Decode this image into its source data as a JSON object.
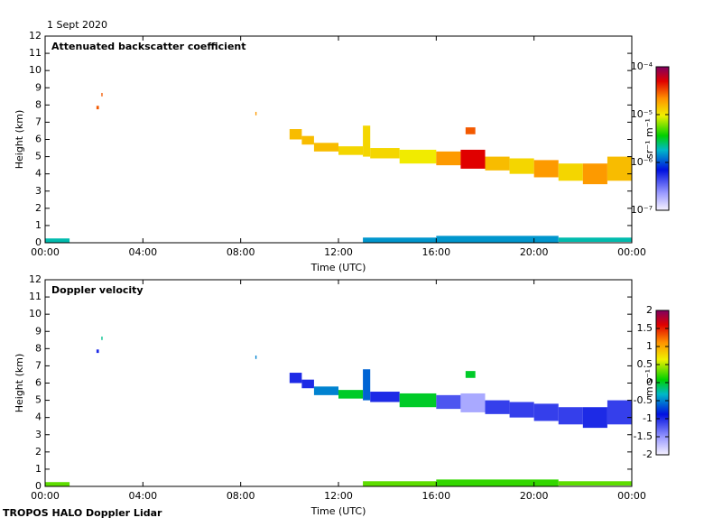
{
  "header": {
    "date": "1 Sept 2020"
  },
  "footer": "TROPOS HALO Doppler Lidar",
  "chart_data": [
    {
      "type": "heatmap",
      "title": "Attenuated backscatter coefficient",
      "x_label": "Time (UTC)",
      "y_label": "Height (km)",
      "xlim": [
        0,
        24
      ],
      "xticks": [
        {
          "value": 0,
          "label": "00:00"
        },
        {
          "value": 4,
          "label": "04:00"
        },
        {
          "value": 8,
          "label": "08:00"
        },
        {
          "value": 12,
          "label": "12:00"
        },
        {
          "value": 16,
          "label": "16:00"
        },
        {
          "value": 20,
          "label": "20:00"
        },
        {
          "value": 24,
          "label": "00:00"
        }
      ],
      "ylim": [
        0,
        12
      ],
      "yticks": [
        0,
        1,
        2,
        3,
        4,
        5,
        6,
        7,
        8,
        9,
        10,
        11,
        12
      ],
      "colorbar": {
        "label": "sr⁻¹ m⁻¹",
        "log": true,
        "lim": [
          1e-07,
          0.0001
        ],
        "ticks": [
          {
            "value": 1e-07,
            "label": "10⁻⁷"
          },
          {
            "value": 1e-06,
            "label": "10⁻⁶"
          },
          {
            "value": 1e-05,
            "label": "10⁻⁵"
          },
          {
            "value": 0.0001,
            "label": "10⁻⁴"
          }
        ]
      },
      "cells": [
        {
          "t0": 2.1,
          "t1": 2.2,
          "base": 7.75,
          "top": 7.95,
          "value": 3e-05
        },
        {
          "t0": 2.3,
          "t1": 2.35,
          "base": 8.5,
          "top": 8.7,
          "value": 3e-05
        },
        {
          "t0": 8.6,
          "t1": 8.65,
          "base": 7.4,
          "top": 7.6,
          "value": 2e-05
        },
        {
          "t0": 10,
          "t1": 10.5,
          "base": 6.0,
          "top": 6.6,
          "value": 1.5e-05
        },
        {
          "t0": 10.5,
          "t1": 11,
          "base": 5.7,
          "top": 6.2,
          "value": 1.5e-05
        },
        {
          "t0": 11,
          "t1": 12,
          "base": 5.3,
          "top": 5.8,
          "value": 1.5e-05
        },
        {
          "t0": 12,
          "t1": 13,
          "base": 5.1,
          "top": 5.6,
          "value": 1.2e-05
        },
        {
          "t0": 13,
          "t1": 13.3,
          "base": 5.0,
          "top": 6.8,
          "value": 1.2e-05
        },
        {
          "t0": 13.3,
          "t1": 14.5,
          "base": 4.9,
          "top": 5.5,
          "value": 1.2e-05
        },
        {
          "t0": 14.5,
          "t1": 16,
          "base": 4.6,
          "top": 5.4,
          "value": 1e-05
        },
        {
          "t0": 16,
          "t1": 17,
          "base": 4.5,
          "top": 5.3,
          "value": 2e-05
        },
        {
          "t0": 17,
          "t1": 18,
          "base": 4.3,
          "top": 5.4,
          "value": 5e-05
        },
        {
          "t0": 17.2,
          "t1": 17.6,
          "base": 6.3,
          "top": 6.7,
          "value": 3e-05
        },
        {
          "t0": 18,
          "t1": 19,
          "base": 4.2,
          "top": 5.0,
          "value": 1.5e-05
        },
        {
          "t0": 19,
          "t1": 20,
          "base": 4.0,
          "top": 4.9,
          "value": 1.2e-05
        },
        {
          "t0": 20,
          "t1": 21,
          "base": 3.8,
          "top": 4.8,
          "value": 2e-05
        },
        {
          "t0": 21,
          "t1": 22,
          "base": 3.6,
          "top": 4.6,
          "value": 1.2e-05
        },
        {
          "t0": 22,
          "t1": 23,
          "base": 3.4,
          "top": 4.6,
          "value": 2e-05
        },
        {
          "t0": 23,
          "t1": 24,
          "base": 3.6,
          "top": 5.0,
          "value": 1.5e-05
        },
        {
          "t0": 0,
          "t1": 1,
          "base": 0,
          "top": 0.25,
          "value": 2e-06
        },
        {
          "t0": 13,
          "t1": 16,
          "base": 0,
          "top": 0.3,
          "value": 1.5e-06
        },
        {
          "t0": 16,
          "t1": 21,
          "base": 0,
          "top": 0.4,
          "value": 1.5e-06
        },
        {
          "t0": 21,
          "t1": 24,
          "base": 0.05,
          "top": 0.3,
          "value": 2e-06
        }
      ]
    },
    {
      "type": "heatmap",
      "title": "Doppler velocity",
      "x_label": "Time (UTC)",
      "y_label": "Height (km)",
      "xlim": [
        0,
        24
      ],
      "xticks": [
        {
          "value": 0,
          "label": "00:00"
        },
        {
          "value": 4,
          "label": "04:00"
        },
        {
          "value": 8,
          "label": "08:00"
        },
        {
          "value": 12,
          "label": "12:00"
        },
        {
          "value": 16,
          "label": "16:00"
        },
        {
          "value": 20,
          "label": "20:00"
        },
        {
          "value": 24,
          "label": "00:00"
        }
      ],
      "ylim": [
        0,
        12
      ],
      "yticks": [
        0,
        1,
        2,
        3,
        4,
        5,
        6,
        7,
        8,
        9,
        10,
        11,
        12
      ],
      "colorbar": {
        "label": "m s⁻¹",
        "log": false,
        "lim": [
          -2,
          2
        ],
        "ticks": [
          -2,
          -1.5,
          -1,
          -0.5,
          0,
          0.5,
          1,
          1.5,
          2
        ]
      },
      "cells": [
        {
          "t0": 2.1,
          "t1": 2.2,
          "base": 7.75,
          "top": 7.95,
          "value": -1
        },
        {
          "t0": 2.3,
          "t1": 2.35,
          "base": 8.5,
          "top": 8.7,
          "value": -0.2
        },
        {
          "t0": 8.6,
          "t1": 8.65,
          "base": 7.4,
          "top": 7.6,
          "value": -0.5
        },
        {
          "t0": 10,
          "t1": 10.5,
          "base": 6.0,
          "top": 6.6,
          "value": -1
        },
        {
          "t0": 10.5,
          "t1": 11,
          "base": 5.7,
          "top": 6.2,
          "value": -1
        },
        {
          "t0": 11,
          "t1": 12,
          "base": 5.3,
          "top": 5.8,
          "value": -0.5
        },
        {
          "t0": 12,
          "t1": 13,
          "base": 5.1,
          "top": 5.6,
          "value": 0
        },
        {
          "t0": 13,
          "t1": 13.3,
          "base": 5.0,
          "top": 6.8,
          "value": -0.6
        },
        {
          "t0": 13.3,
          "t1": 14.5,
          "base": 4.9,
          "top": 5.5,
          "value": -1
        },
        {
          "t0": 14.5,
          "t1": 16,
          "base": 4.6,
          "top": 5.4,
          "value": 0
        },
        {
          "t0": 16,
          "t1": 17,
          "base": 4.5,
          "top": 5.3,
          "value": -1.2
        },
        {
          "t0": 17,
          "t1": 18,
          "base": 4.3,
          "top": 5.4,
          "value": -1.6
        },
        {
          "t0": 17.2,
          "t1": 17.6,
          "base": 6.3,
          "top": 6.7,
          "value": 0
        },
        {
          "t0": 18,
          "t1": 19,
          "base": 4.2,
          "top": 5.0,
          "value": -1.1
        },
        {
          "t0": 19,
          "t1": 20,
          "base": 4.0,
          "top": 4.9,
          "value": -1.1
        },
        {
          "t0": 20,
          "t1": 21,
          "base": 3.8,
          "top": 4.8,
          "value": -1.1
        },
        {
          "t0": 21,
          "t1": 22,
          "base": 3.6,
          "top": 4.6,
          "value": -1.1
        },
        {
          "t0": 22,
          "t1": 23,
          "base": 3.4,
          "top": 4.6,
          "value": -1
        },
        {
          "t0": 23,
          "t1": 24,
          "base": 3.6,
          "top": 5.0,
          "value": -1.1
        },
        {
          "t0": 0,
          "t1": 1,
          "base": 0,
          "top": 0.25,
          "value": 0.3
        },
        {
          "t0": 13,
          "t1": 16,
          "base": 0,
          "top": 0.3,
          "value": 0.3
        },
        {
          "t0": 16,
          "t1": 21,
          "base": 0,
          "top": 0.4,
          "value": 0.2
        },
        {
          "t0": 21,
          "t1": 24,
          "base": 0.05,
          "top": 0.3,
          "value": 0.3
        }
      ]
    }
  ]
}
